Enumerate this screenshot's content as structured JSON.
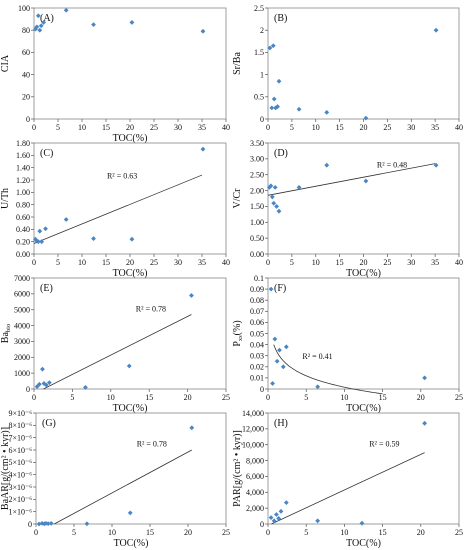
{
  "colors": {
    "point": "#4a86c5",
    "trend": "#333333",
    "axis": "#555555",
    "border": "#888888"
  },
  "chart_data": [
    {
      "id": "A",
      "type": "scatter",
      "panel_label": "(A)",
      "xlabel": "TOC(%)",
      "ylabel": "CIA",
      "xlim": [
        0,
        40
      ],
      "ylim": [
        0,
        100
      ],
      "xticks": [
        "0",
        "5",
        "10",
        "15",
        "20",
        "25",
        "30",
        "35",
        "40"
      ],
      "yticks": [
        "0",
        "20",
        "40",
        "60",
        "80",
        "100"
      ],
      "x": [
        0.3,
        0.6,
        0.9,
        1.2,
        1.5,
        2.0,
        6.7,
        12.4,
        20.4,
        35.2
      ],
      "y": [
        81,
        83,
        93,
        80,
        84,
        87,
        98,
        85,
        87,
        79
      ],
      "trendline": null,
      "r2": null
    },
    {
      "id": "B",
      "type": "scatter",
      "panel_label": "(B)",
      "xlabel": "",
      "ylabel": "Sr/Ba",
      "xlim": [
        0,
        40
      ],
      "ylim": [
        0,
        2.5
      ],
      "xticks": [
        "0",
        "5",
        "10",
        "15",
        "20",
        "25",
        "30",
        "35",
        "40"
      ],
      "yticks": [
        "0",
        "0.5",
        "1",
        "1.5",
        "2",
        "2.5"
      ],
      "x": [
        0.4,
        0.8,
        1.1,
        1.3,
        1.6,
        2.0,
        2.3,
        6.5,
        12.3,
        20.5,
        35.2
      ],
      "y": [
        1.6,
        0.25,
        1.65,
        0.45,
        0.25,
        0.28,
        0.85,
        0.22,
        0.15,
        0.02,
        2.0
      ],
      "trendline": null,
      "r2": null
    },
    {
      "id": "C",
      "type": "scatter",
      "panel_label": "(C)",
      "xlabel": "TOC(%)",
      "ylabel": "U/Th",
      "xlim": [
        0,
        40
      ],
      "ylim": [
        0,
        1.8
      ],
      "xticks": [
        "0",
        "5",
        "10",
        "15",
        "20",
        "25",
        "30",
        "35",
        "40"
      ],
      "yticks": [
        "0.00",
        "0.20",
        "0.40",
        "0.60",
        "0.80",
        "1.00",
        "1.20",
        "1.40",
        "1.60",
        "1.80"
      ],
      "x": [
        0.3,
        0.6,
        0.9,
        1.2,
        1.6,
        2.4,
        6.7,
        12.4,
        20.4,
        35.2
      ],
      "y": [
        0.24,
        0.21,
        0.2,
        0.37,
        0.2,
        0.41,
        0.56,
        0.25,
        0.24,
        1.7
      ],
      "trendline": [
        [
          0,
          0.17
        ],
        [
          35,
          1.28
        ]
      ],
      "r2": "R² = 0.63"
    },
    {
      "id": "D",
      "type": "scatter",
      "panel_label": "(D)",
      "xlabel": "TOC(%)",
      "ylabel": "V/Cr",
      "xlim": [
        0,
        40
      ],
      "ylim": [
        0,
        3.5
      ],
      "xticks": [
        "0",
        "5",
        "10",
        "15",
        "20",
        "25",
        "30",
        "35",
        "40"
      ],
      "yticks": [
        "0.00",
        "0.50",
        "1.00",
        "1.50",
        "2.00",
        "2.50",
        "3.00",
        "3.50"
      ],
      "x": [
        0.3,
        0.6,
        0.9,
        1.2,
        1.5,
        1.8,
        2.3,
        6.5,
        12.3,
        20.5,
        35.2
      ],
      "y": [
        2.1,
        2.15,
        1.8,
        1.6,
        2.1,
        1.5,
        1.35,
        2.1,
        2.8,
        2.3,
        2.8
      ],
      "trendline": [
        [
          0,
          1.85
        ],
        [
          35,
          2.85
        ]
      ],
      "r2": "R² = 0.48"
    },
    {
      "id": "E",
      "type": "scatter",
      "panel_label": "(E)",
      "xlabel": "TOC(%)",
      "ylabel": "Ba",
      "ylabel_sub": "bio",
      "xlim": [
        0,
        25
      ],
      "ylim": [
        0,
        7000
      ],
      "xticks": [
        "0",
        "5",
        "10",
        "15",
        "20",
        "25"
      ],
      "yticks": [
        "0",
        "1000",
        "2000",
        "3000",
        "4000",
        "5000",
        "6000",
        "7000"
      ],
      "x": [
        0.4,
        0.7,
        1.1,
        1.3,
        1.6,
        2.0,
        6.7,
        12.4,
        20.5
      ],
      "y": [
        150,
        300,
        1250,
        350,
        250,
        400,
        100,
        1450,
        5900
      ],
      "trendline": [
        [
          0,
          -300
        ],
        [
          20.5,
          4700
        ]
      ],
      "r2": "R² = 0.78"
    },
    {
      "id": "F",
      "type": "scatter",
      "panel_label": "(F)",
      "xlabel": "TOC(%)",
      "ylabel": "P",
      "ylabel_sub": "xs",
      "ylabel_suffix": "(%)",
      "xlim": [
        0,
        25
      ],
      "ylim": [
        0,
        0.1
      ],
      "xticks": [
        "0",
        "5",
        "10",
        "15",
        "20",
        "25"
      ],
      "yticks": [
        "0",
        "0.01",
        "0.02",
        "0.03",
        "0.04",
        "0.05",
        "0.06",
        "0.07",
        "0.08",
        "0.09",
        "0.1"
      ],
      "x": [
        0.4,
        0.6,
        0.9,
        1.2,
        1.5,
        2.0,
        2.4,
        6.5,
        20.5
      ],
      "y": [
        0.09,
        0.005,
        0.045,
        0.025,
        0.035,
        0.02,
        0.038,
        0.002,
        0.01
      ],
      "trendline": "log",
      "trend_coeffs": [
        0.0357,
        -0.0148
      ],
      "trend_xrange": [
        0.75,
        15
      ],
      "r2": "R² = 0.41"
    },
    {
      "id": "G",
      "type": "scatter",
      "panel_label": "(G)",
      "xlabel": "TOC(%)",
      "ylabel": "BaAR[g/(cm² • kyr)]",
      "xlim": [
        0,
        25
      ],
      "ylim": [
        0,
        9
      ],
      "xticks": [
        "0",
        "5",
        "10",
        "15",
        "20",
        "25"
      ],
      "yticks": [
        "0",
        "1×10⁻⁶",
        "2×10⁻⁶",
        "3×10⁻⁶",
        "4×10⁻⁶",
        "5×10⁻⁶",
        "6×10⁻⁶",
        "7×10⁻⁶",
        "8×10⁻⁶",
        "9×10⁻⁶"
      ],
      "x": [
        0.4,
        0.8,
        1.1,
        1.3,
        1.6,
        2.0,
        6.7,
        12.4,
        20.5
      ],
      "y": [
        0.0,
        0.05,
        0.02,
        0.05,
        0.03,
        0.05,
        0.02,
        0.9,
        7.8
      ],
      "trendline": [
        [
          2.4,
          0
        ],
        [
          20.5,
          6.0
        ]
      ],
      "r2": "R² = 0.78"
    },
    {
      "id": "H",
      "type": "scatter",
      "panel_label": "(H)",
      "xlabel": "TOC(%)",
      "ylabel": "PAR[g/(cm² • kyr)]",
      "xlim": [
        0,
        25
      ],
      "ylim": [
        0,
        14000
      ],
      "xticks": [
        "0",
        "5",
        "10",
        "15",
        "20",
        "25"
      ],
      "yticks": [
        "0",
        "2,000",
        "4,000",
        "6,000",
        "8,000",
        "10,000",
        "12,000",
        "14,000"
      ],
      "x": [
        0.4,
        0.8,
        1.1,
        1.4,
        1.7,
        2.4,
        6.5,
        12.3,
        20.5
      ],
      "y": [
        800,
        400,
        1200,
        700,
        1600,
        2700,
        400,
        100,
        12700
      ],
      "trendline": [
        [
          0,
          -200
        ],
        [
          20.5,
          9000
        ]
      ],
      "r2": "R² = 0.59"
    }
  ]
}
